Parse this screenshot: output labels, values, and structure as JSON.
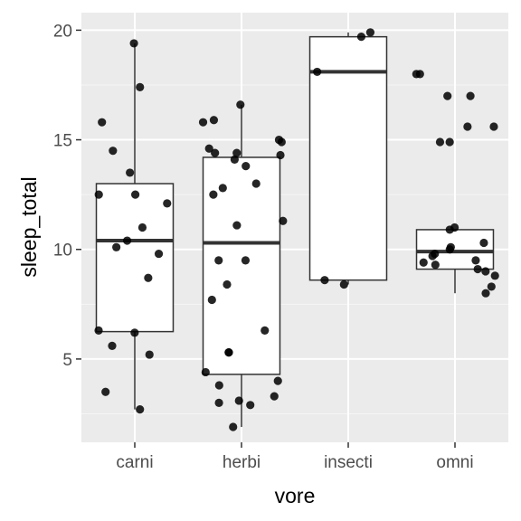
{
  "chart_data": {
    "type": "boxplot",
    "title": "",
    "xlabel": "vore",
    "ylabel": "sleep_total",
    "categories": [
      "carni",
      "herbi",
      "insecti",
      "omni"
    ],
    "ylim": [
      1.2,
      20.8
    ],
    "yticks": [
      5,
      10,
      15,
      20
    ],
    "grid": true,
    "legend": "none",
    "boxes": [
      {
        "category": "carni",
        "whisker_low": 2.7,
        "q1": 6.25,
        "median": 10.4,
        "q3": 13.0,
        "whisker_high": 19.4
      },
      {
        "category": "herbi",
        "whisker_low": 1.9,
        "q1": 4.3,
        "median": 10.3,
        "q3": 14.2,
        "whisker_high": 16.6
      },
      {
        "category": "insecti",
        "whisker_low": 8.4,
        "q1": 8.6,
        "median": 18.1,
        "q3": 19.7,
        "whisker_high": 19.9
      },
      {
        "category": "omni",
        "whisker_low": 8.0,
        "q1": 9.1,
        "median": 9.9,
        "q3": 10.9,
        "whisker_high": 10.9
      }
    ],
    "points": [
      {
        "category": "carni",
        "values": [
          19.4,
          17.4,
          15.8,
          14.5,
          13.5,
          12.5,
          12.5,
          12.1,
          11.0,
          10.4,
          10.1,
          9.8,
          8.7,
          6.3,
          6.2,
          5.6,
          5.2,
          3.5,
          2.7
        ]
      },
      {
        "category": "herbi",
        "values": [
          16.6,
          15.9,
          15.8,
          15.0,
          14.9,
          14.6,
          14.4,
          14.3,
          14.4,
          14.1,
          13.8,
          13.0,
          12.8,
          12.5,
          11.3,
          11.1,
          9.5,
          9.5,
          8.4,
          7.7,
          6.3,
          5.3,
          5.3,
          4.4,
          4.0,
          3.8,
          3.3,
          3.1,
          3.0,
          2.9,
          1.9
        ]
      },
      {
        "category": "insecti",
        "values": [
          19.9,
          19.7,
          18.1,
          8.6,
          8.4
        ]
      },
      {
        "category": "omni",
        "values": [
          18.0,
          18.0,
          17.0,
          17.0,
          15.6,
          15.6,
          14.9,
          14.9,
          11.0,
          10.9,
          10.3,
          10.1,
          10.0,
          9.8,
          9.7,
          9.5,
          9.4,
          9.3,
          9.1,
          9.0,
          8.8,
          8.3,
          8.0
        ]
      }
    ],
    "colors": {
      "panel": "#ebebeb",
      "grid_major": "#ffffff",
      "grid_minor": "#f5f5f5",
      "box_fill": "#ffffff",
      "box_line": "#333333",
      "point": "#000000",
      "tick": "#333333"
    }
  }
}
